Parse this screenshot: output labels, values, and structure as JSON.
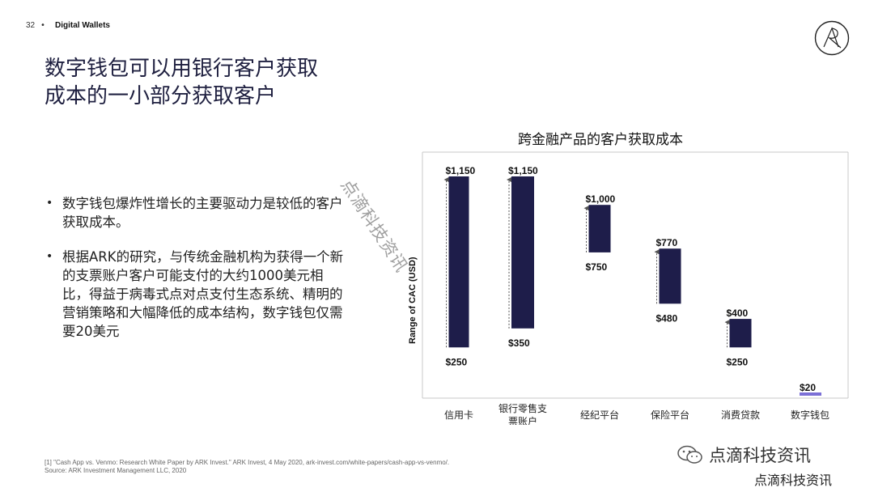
{
  "header": {
    "page_number": "32",
    "separator": "•",
    "section": "Digital Wallets"
  },
  "title": {
    "line1": "数字钱包可以用银行客户获取",
    "line2": "成本的一小部分获取客户"
  },
  "bullets": [
    "数字钱包爆炸性增长的主要驱动力是较低的客户获取成本。",
    "根据ARK的研究，与传统金融机构为获得一个新的支票账户客户可能支付的大约1000美元相比，得益于病毒式点对点支付生态系统、精明的营销策略和大幅降低的成本结构，数字钱包仅需要20美元"
  ],
  "footnote": {
    "line1": "[1] \"Cash App vs. Venmo: Research White Paper by ARK Invest.\" ARK Invest, 4 May 2020, ark-invest.com/white-papers/cash-app-vs-venmo/.",
    "line2": "Source: ARK Investment Management LLC, 2020"
  },
  "watermark": {
    "diagonal": "点滴科技资讯",
    "brand": "点滴科技资讯",
    "brand2": "点滴科技资讯"
  },
  "chart_data": {
    "type": "bar",
    "title": "跨金融产品的客户获取成本",
    "ylabel": "Range of CAC (USD)",
    "categories": [
      "信用卡",
      "银行零售支票账户",
      "经纪平台",
      "保险平台",
      "消费贷款",
      "数字钱包"
    ],
    "ranges": [
      {
        "low": 250,
        "high": 1150,
        "low_label": "$250",
        "high_label": "$1,150"
      },
      {
        "low": 350,
        "high": 1150,
        "low_label": "$350",
        "high_label": "$1,150"
      },
      {
        "low": 750,
        "high": 1000,
        "low_label": "$750",
        "high_label": "$1,000"
      },
      {
        "low": 480,
        "high": 770,
        "low_label": "$480",
        "high_label": "$770"
      },
      {
        "low": 250,
        "high": 400,
        "low_label": "$250",
        "high_label": "$400"
      },
      {
        "low": 20,
        "high": 20,
        "low_label": "",
        "high_label": "$20"
      }
    ],
    "colors": {
      "bar": "#1e1d4a",
      "highlight": "#7b6fd6"
    }
  }
}
